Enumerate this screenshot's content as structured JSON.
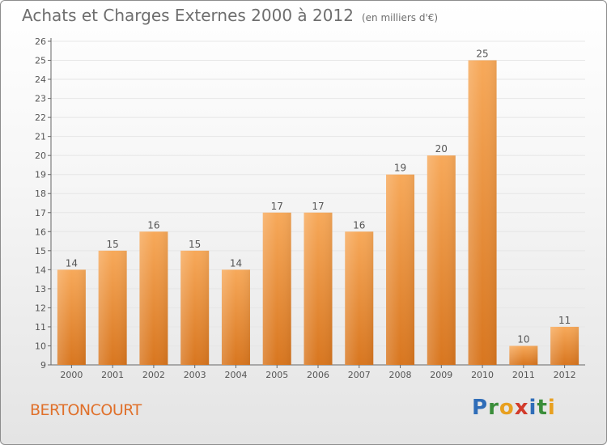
{
  "header": {
    "title": "Achats et Charges Externes 2000 à 2012",
    "unit": "(en milliers d'€)"
  },
  "footer": {
    "commune": "BERTONCOURT",
    "logo_text": "Proxiti",
    "logo_letters": [
      {
        "ch": "P",
        "color": "#2f6db8"
      },
      {
        "ch": "r",
        "color": "#3a8d3a"
      },
      {
        "ch": "o",
        "color": "#e8a020"
      },
      {
        "ch": "x",
        "color": "#d23b2b"
      },
      {
        "ch": "i",
        "color": "#2f6db8"
      },
      {
        "ch": "t",
        "color": "#3a8d3a"
      },
      {
        "ch": "i",
        "color": "#e8a020"
      }
    ]
  },
  "colors": {
    "bar_top": "#f7a95a",
    "bar_bottom": "#d8761f",
    "label": "#555555",
    "grid": "#e6e6e6",
    "commune": "#e0702a"
  },
  "chart_data": {
    "type": "bar",
    "title": "Achats et Charges Externes 2000 à 2012",
    "categories": [
      "2000",
      "2001",
      "2002",
      "2003",
      "2004",
      "2005",
      "2006",
      "2007",
      "2008",
      "2009",
      "2010",
      "2011",
      "2012"
    ],
    "values": [
      14,
      15,
      16,
      15,
      14,
      17,
      17,
      16,
      19,
      20,
      25,
      10,
      11
    ],
    "ylim": [
      9,
      26
    ],
    "yticks": [
      9,
      10,
      11,
      12,
      13,
      14,
      15,
      16,
      17,
      18,
      19,
      20,
      21,
      22,
      23,
      24,
      25,
      26
    ],
    "grid": true,
    "xlabel": "",
    "ylabel": ""
  }
}
